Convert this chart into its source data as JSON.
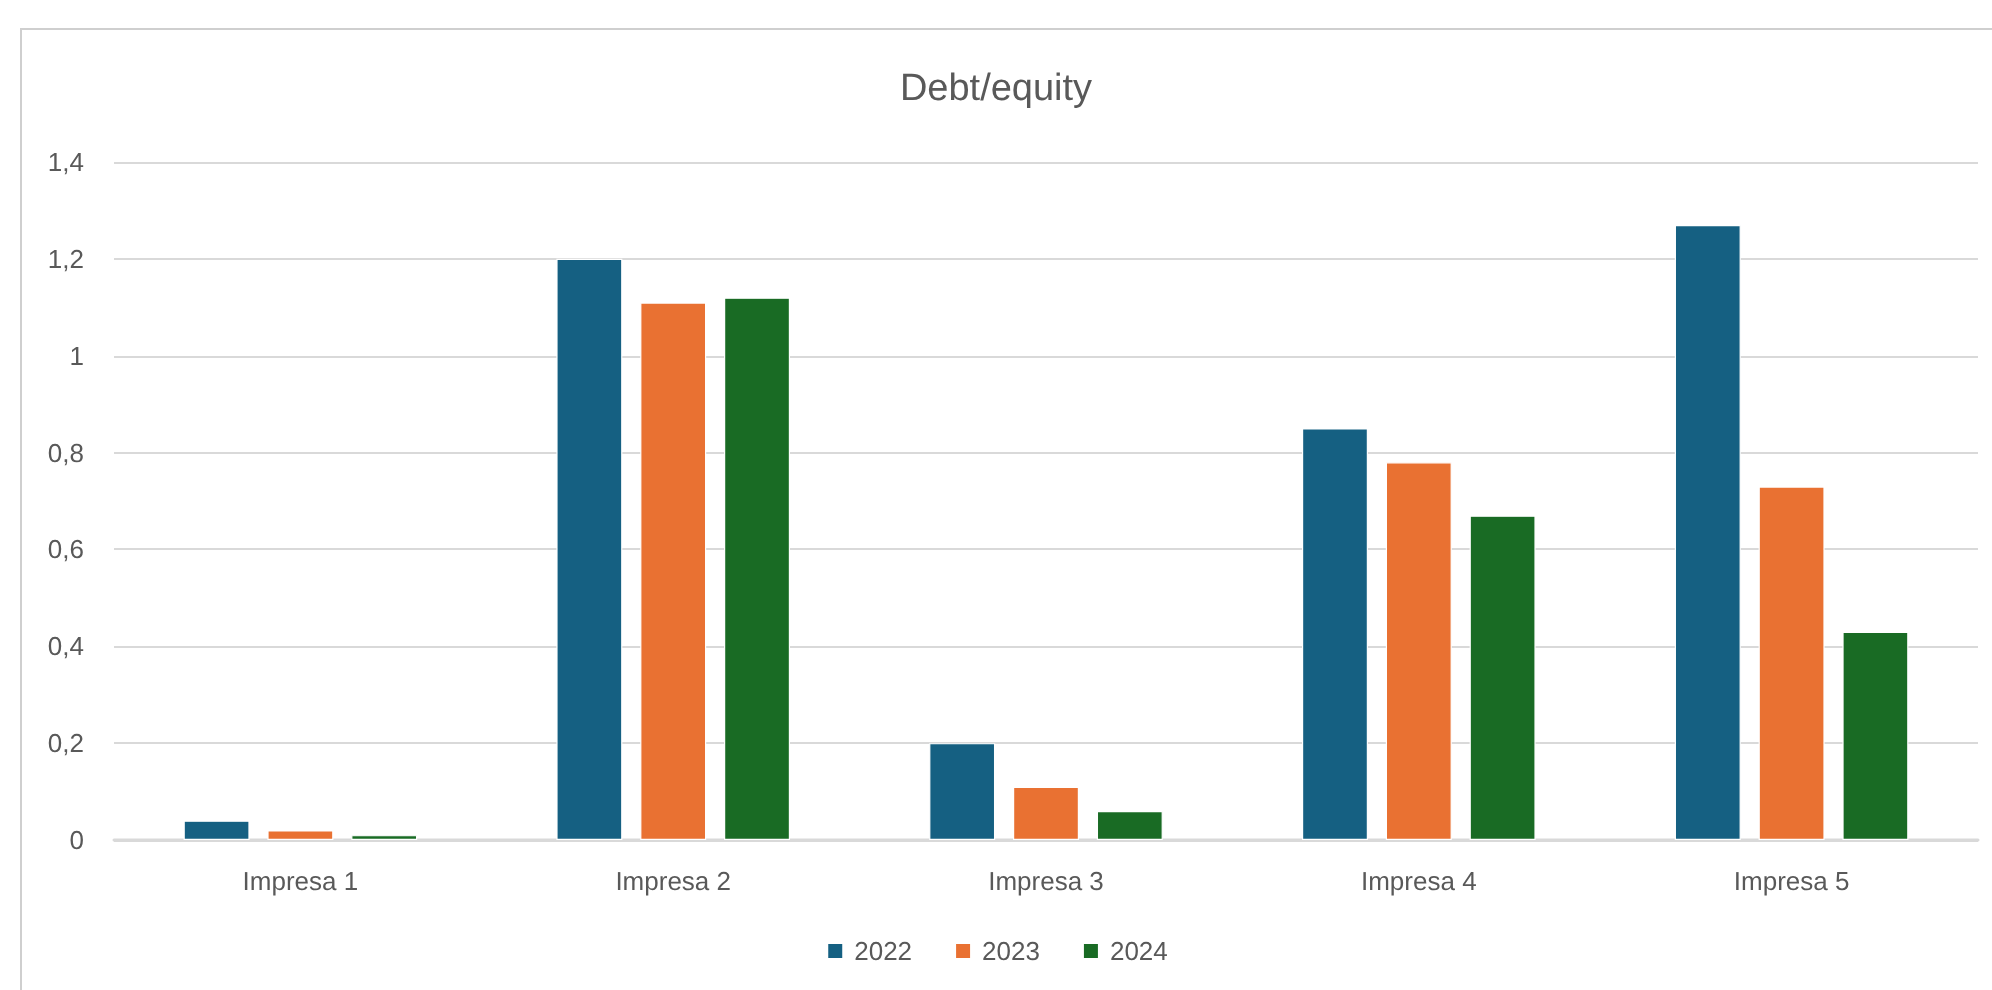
{
  "chart_data": {
    "type": "bar",
    "title": "Debt/equity",
    "categories": [
      "Impresa 1",
      "Impresa 2",
      "Impresa 3",
      "Impresa 4",
      "Impresa 5"
    ],
    "series": [
      {
        "name": "2022",
        "color": "#156082",
        "values": [
          0.04,
          1.2,
          0.2,
          0.85,
          1.27
        ]
      },
      {
        "name": "2023",
        "color": "#e97132",
        "values": [
          0.02,
          1.11,
          0.11,
          0.78,
          0.73
        ]
      },
      {
        "name": "2024",
        "color": "#196b24",
        "values": [
          0.01,
          1.12,
          0.06,
          0.67,
          0.43
        ]
      }
    ],
    "ylim": [
      0,
      1.4
    ],
    "yticks": [
      0,
      {
        "value": 0.2,
        "label": "0,2"
      },
      {
        "value": 0.4,
        "label": "0,4"
      },
      {
        "value": 0.6,
        "label": "0,6"
      },
      {
        "value": 0.8,
        "label": "0,8"
      },
      1,
      {
        "value": 1.2,
        "label": "1,2"
      },
      {
        "value": 1.4,
        "label": "1,4"
      }
    ],
    "grid": "y",
    "legend": "bottom"
  }
}
